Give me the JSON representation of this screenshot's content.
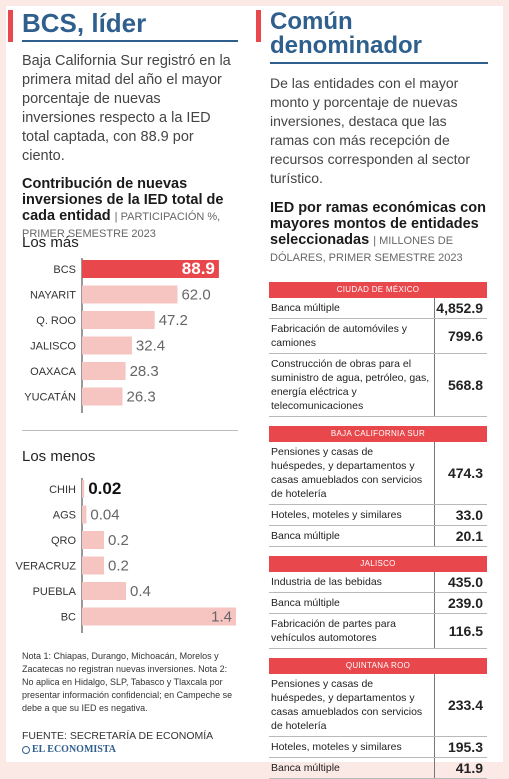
{
  "left": {
    "title": "BCS, líder",
    "lead": "Baja California Sur registró en la primera mitad del año el mayor porcentaje de nuevas inversiones respecto a la IED total captada, con 88.9 por ciento.",
    "chart_title": "Contribución de nuevas inversiones de la IED total de cada entidad",
    "chart_unit": "| PARTICIPACIÓN %, PRIMER SEMESTRE 2023",
    "label_top": "Los más",
    "label_bottom": "Los menos"
  },
  "right": {
    "title": "Común denominador",
    "lead": "De las entidades con el mayor monto y porcentaje de nuevas inversiones, destaca que las ramas con más recepción de recursos corresponden al sector turístico.",
    "table_title": "IED por ramas económicas con mayores montos de entidades seleccionadas",
    "table_unit": "| MILLONES DE DÓLARES, PRIMER SEMESTRE 2023"
  },
  "notes": "Nota 1: Chiapas, Durango, Michoacán, Morelos y Zacatecas no registran nuevas inversiones. Nota 2: No aplica en Hidalgo, SLP, Tabasco y Tlaxcala por presentar información confidencial; en Campeche se debe a que su IED es negativa.",
  "fuente": "FUENTE: SECRETARÍA DE ECONOMÍA",
  "brand": "EL ECONOMISTA",
  "colors": {
    "accent": "#e8474c",
    "bar_light": "#f6c4c1",
    "title_blue": "#2f5f8c"
  },
  "chart_data": [
    {
      "type": "bar",
      "orientation": "horizontal",
      "title": "Los más",
      "categories": [
        "BCS",
        "NAYARIT",
        "Q. ROO",
        "JALISCO",
        "OAXACA",
        "YUCATÁN"
      ],
      "values": [
        88.9,
        62.0,
        47.2,
        32.4,
        28.3,
        26.3
      ],
      "value_labels": [
        "88.9",
        "62.0",
        "47.2",
        "32.4",
        "28.3",
        "26.3"
      ],
      "xlim": [
        0,
        100
      ]
    },
    {
      "type": "bar",
      "orientation": "horizontal",
      "title": "Los menos",
      "categories": [
        "CHIH",
        "AGS",
        "QRO",
        "VERACRUZ",
        "PUEBLA",
        "BC"
      ],
      "values": [
        0.02,
        0.04,
        0.2,
        0.2,
        0.4,
        1.4
      ],
      "value_labels": [
        "0.02",
        "0.04",
        "0.2",
        "0.2",
        "0.4",
        "1.4"
      ],
      "xlim": [
        0,
        1.4
      ]
    },
    {
      "type": "table",
      "title": "IED por ramas económicas con mayores montos de entidades seleccionadas",
      "groups": [
        {
          "name": "CIUDAD DE MÉXICO",
          "rows": [
            {
              "label": "Banca múltiple",
              "value": "4,852.9"
            },
            {
              "label": "Fabricación de automóviles y camiones",
              "value": "799.6"
            },
            {
              "label": "Construcción de obras para el suministro de agua, petróleo, gas, energía eléctrica y telecomunicaciones",
              "value": "568.8"
            }
          ]
        },
        {
          "name": "BAJA CALIFORNIA SUR",
          "rows": [
            {
              "label": "Pensiones y casas de huéspedes, y departamentos y casas amueblados con servicios de hotelería",
              "value": "474.3"
            },
            {
              "label": "Hoteles, moteles y similares",
              "value": "33.0"
            },
            {
              "label": "Banca múltiple",
              "value": "20.1"
            }
          ]
        },
        {
          "name": "JALISCO",
          "rows": [
            {
              "label": "Industria de las bebidas",
              "value": "435.0"
            },
            {
              "label": "Banca múltiple",
              "value": "239.0"
            },
            {
              "label": "Fabricación de partes para vehículos automotores",
              "value": "116.5"
            }
          ]
        },
        {
          "name": "QUINTANA ROO",
          "rows": [
            {
              "label": "Pensiones y casas de huéspedes, y departamentos y casas amueblados con servicios de hotelería",
              "value": "233.4"
            },
            {
              "label": "Hoteles, moteles y similares",
              "value": "195.3"
            },
            {
              "label": "Banca múltiple",
              "value": "41.9"
            }
          ]
        }
      ]
    }
  ]
}
